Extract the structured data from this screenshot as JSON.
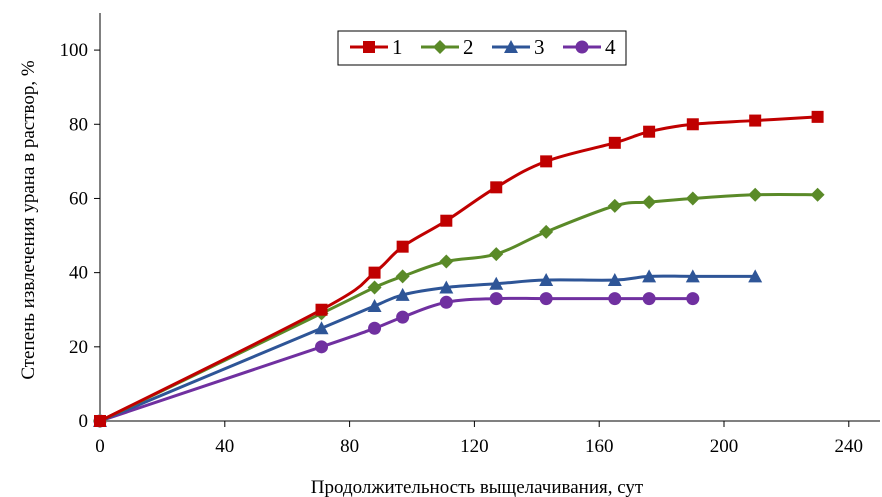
{
  "chart_data": {
    "type": "line",
    "title": "",
    "xlabel": "Продолжительность выщелачивания, сут",
    "ylabel": "Степень извлечения урана в раствор, %",
    "xlim": [
      0,
      250
    ],
    "ylim": [
      0,
      110
    ],
    "xticks": [
      0,
      40,
      80,
      120,
      160,
      200,
      240
    ],
    "yticks": [
      0,
      20,
      40,
      60,
      80,
      100
    ],
    "grid": false,
    "legend_position": "top-center",
    "series": [
      {
        "name": "1",
        "color": "#c00000",
        "marker": "square",
        "x": [
          0,
          71,
          88,
          97,
          111,
          127,
          143,
          165,
          176,
          190,
          210,
          230
        ],
        "y": [
          0,
          30,
          40,
          47,
          54,
          63,
          70,
          75,
          78,
          80,
          81,
          82
        ]
      },
      {
        "name": "2",
        "color": "#5a8a28",
        "marker": "diamond",
        "x": [
          0,
          71,
          88,
          97,
          111,
          127,
          143,
          165,
          176,
          190,
          210,
          230
        ],
        "y": [
          0,
          29,
          36,
          39,
          43,
          45,
          51,
          58,
          59,
          60,
          61,
          61
        ]
      },
      {
        "name": "3",
        "color": "#2e5597",
        "marker": "triangle",
        "x": [
          0,
          71,
          88,
          97,
          111,
          127,
          143,
          165,
          176,
          190,
          210
        ],
        "y": [
          0,
          25,
          31,
          34,
          36,
          37,
          38,
          38,
          39,
          39,
          39
        ]
      },
      {
        "name": "4",
        "color": "#7030a0",
        "marker": "circle",
        "x": [
          0,
          71,
          88,
          97,
          111,
          127,
          143,
          165,
          176,
          190
        ],
        "y": [
          0,
          20,
          25,
          28,
          32,
          33,
          33,
          33,
          33,
          33
        ]
      }
    ]
  }
}
